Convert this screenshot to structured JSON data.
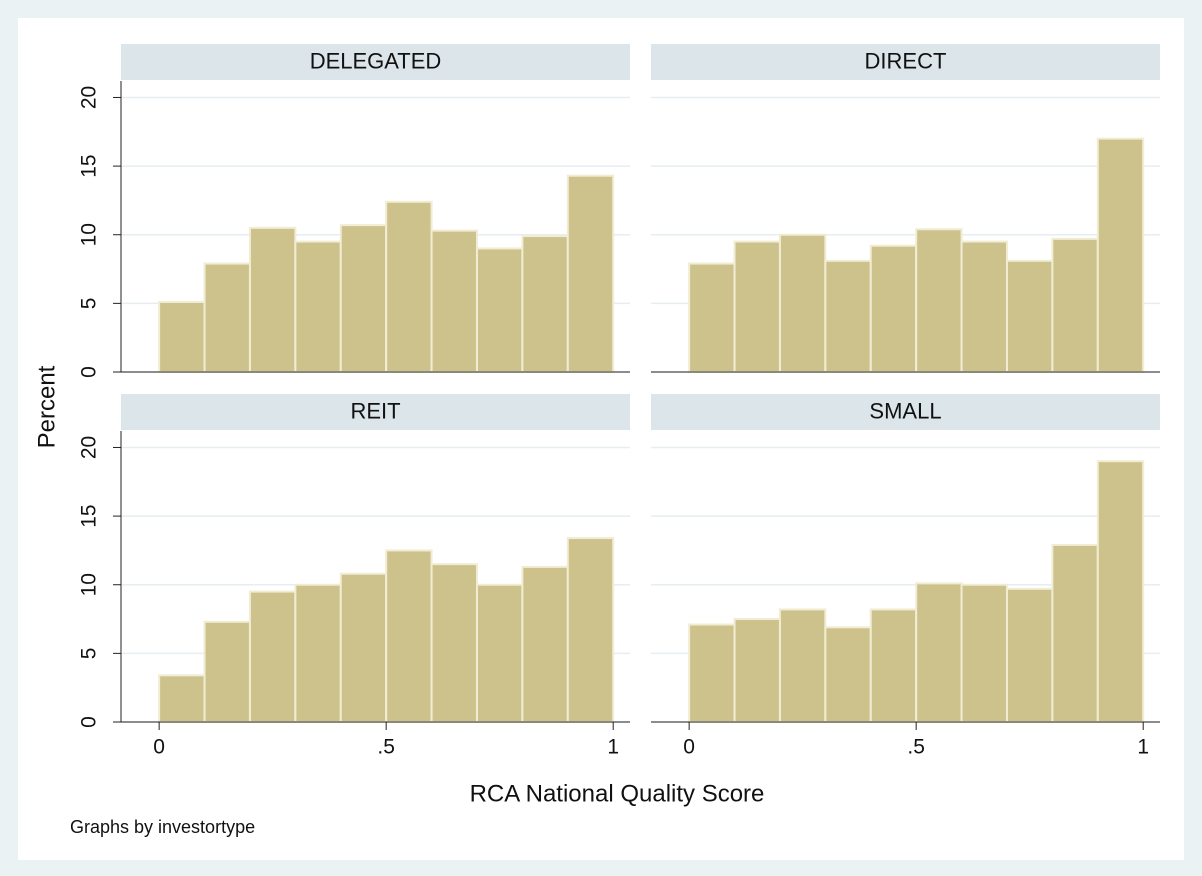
{
  "figure": {
    "ylabel": "Percent",
    "xlabel": "RCA National Quality Score",
    "note": "Graphs by investortype"
  },
  "chart_data": [
    {
      "type": "histogram",
      "title": "DELEGATED",
      "bins": [
        0,
        0.1,
        0.2,
        0.3,
        0.4,
        0.5,
        0.6,
        0.7,
        0.8,
        0.9,
        1
      ],
      "values": [
        5.1,
        7.9,
        10.5,
        9.5,
        10.7,
        12.4,
        10.3,
        9.0,
        9.9,
        14.3
      ],
      "color": "#cdc28b",
      "xlim": [
        -0.084,
        1.037
      ],
      "xticks": [
        0,
        {
          "value": 0.5,
          "label": ".5"
        },
        1
      ],
      "ylim": [
        0,
        21.2
      ],
      "yticks": [
        0,
        5,
        10,
        15,
        20
      ],
      "grid": true
    },
    {
      "type": "histogram",
      "title": "DIRECT",
      "bins": [
        0,
        0.1,
        0.2,
        0.3,
        0.4,
        0.5,
        0.6,
        0.7,
        0.8,
        0.9,
        1
      ],
      "values": [
        7.9,
        9.5,
        10.0,
        8.1,
        9.2,
        10.4,
        9.5,
        8.1,
        9.7,
        17.0
      ],
      "color": "#cdc28b",
      "xlim": [
        -0.084,
        1.037
      ],
      "xticks": [
        0,
        {
          "value": 0.5,
          "label": ".5"
        },
        1
      ],
      "ylim": [
        0,
        21.2
      ],
      "yticks": [
        0,
        5,
        10,
        15,
        20
      ],
      "grid": true
    },
    {
      "type": "histogram",
      "title": "REIT",
      "bins": [
        0,
        0.1,
        0.2,
        0.3,
        0.4,
        0.5,
        0.6,
        0.7,
        0.8,
        0.9,
        1
      ],
      "values": [
        3.4,
        7.3,
        9.5,
        10.0,
        10.8,
        12.5,
        11.5,
        10.0,
        11.3,
        13.4
      ],
      "color": "#cdc28b",
      "xlim": [
        -0.084,
        1.037
      ],
      "xticks": [
        0,
        {
          "value": 0.5,
          "label": ".5"
        },
        1
      ],
      "ylim": [
        0,
        21.2
      ],
      "yticks": [
        0,
        5,
        10,
        15,
        20
      ],
      "grid": true
    },
    {
      "type": "histogram",
      "title": "SMALL",
      "bins": [
        0,
        0.1,
        0.2,
        0.3,
        0.4,
        0.5,
        0.6,
        0.7,
        0.8,
        0.9,
        1
      ],
      "values": [
        7.1,
        7.5,
        8.2,
        6.9,
        8.2,
        10.1,
        10.0,
        9.7,
        12.9,
        19.0
      ],
      "color": "#cdc28b",
      "xlim": [
        -0.084,
        1.037
      ],
      "xticks": [
        0,
        {
          "value": 0.5,
          "label": ".5"
        },
        1
      ],
      "ylim": [
        0,
        21.2
      ],
      "yticks": [
        0,
        5,
        10,
        15,
        20
      ],
      "grid": true
    }
  ]
}
